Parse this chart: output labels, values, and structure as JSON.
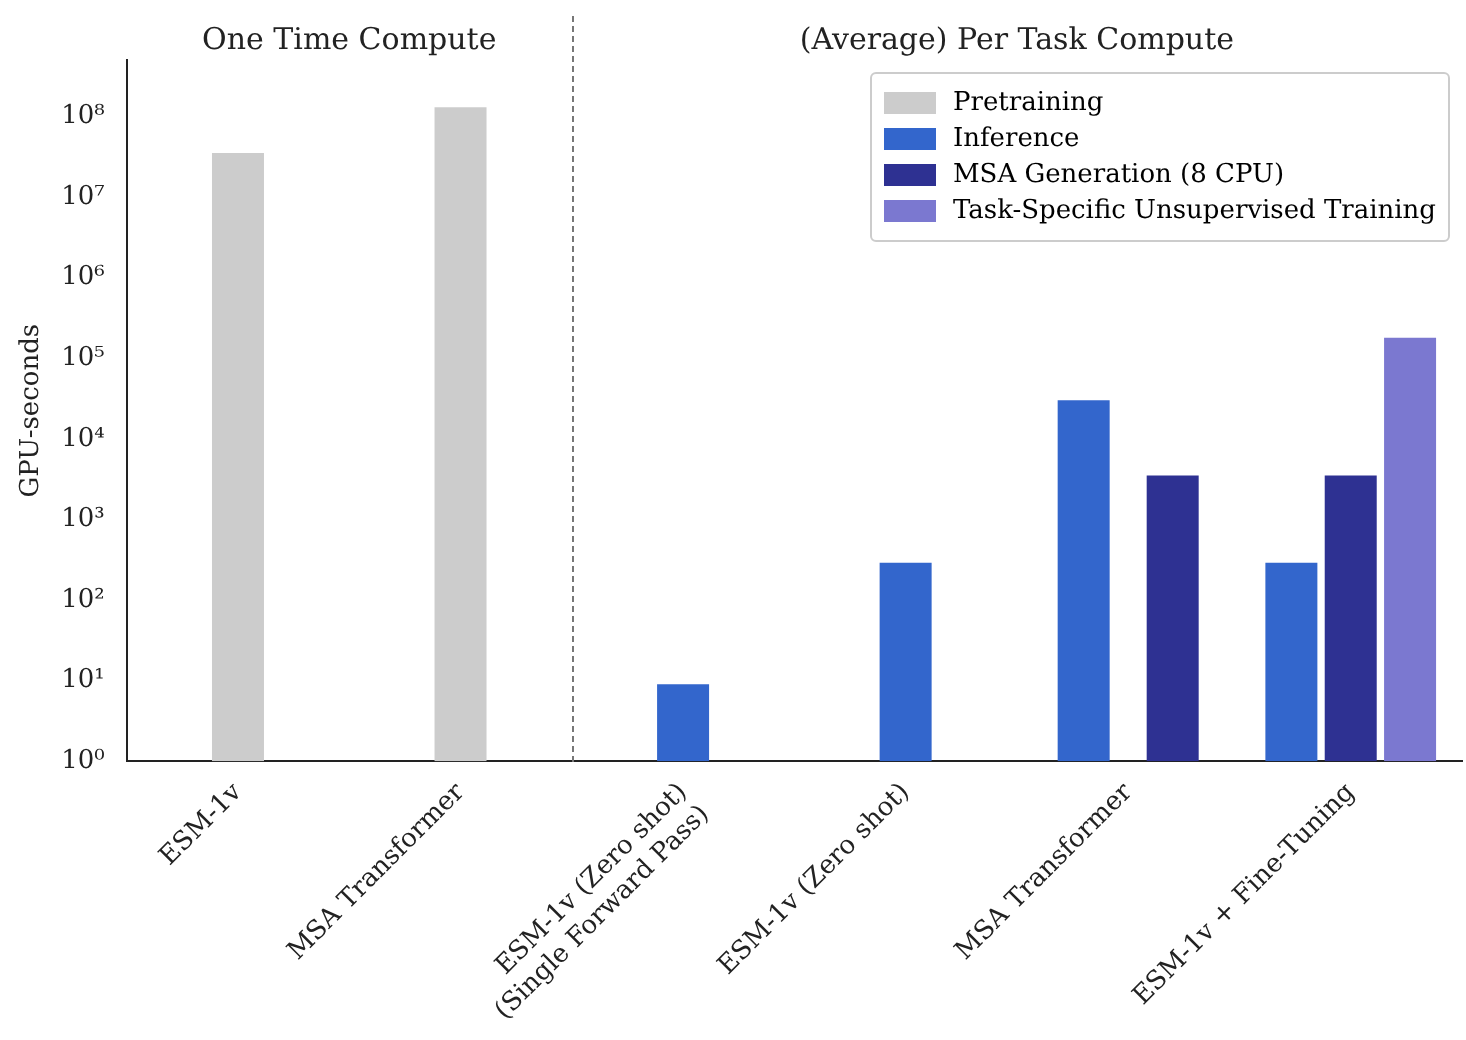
{
  "chart_data": {
    "type": "bar",
    "ylabel": "GPU-seconds",
    "log": "y",
    "categories": [
      "ESM-1v",
      "MSA Transformer",
      "ESM-1v (Zero shot)\n(Single Forward Pass)",
      "ESM-1v (Zero shot)",
      "MSA Transformer",
      "ESM-1v + Fine-Tuning"
    ],
    "series": [
      {
        "name": "Pretraining",
        "color": "#cccccc",
        "values": [
          35000000,
          130000000,
          null,
          null,
          null,
          null
        ]
      },
      {
        "name": "Inference",
        "color": "#3366cc",
        "values": [
          null,
          null,
          9,
          290,
          30000,
          290
        ]
      },
      {
        "name": "MSA Generation (8 CPU)",
        "color": "#2e3192",
        "values": [
          null,
          null,
          null,
          null,
          3500,
          3500
        ]
      },
      {
        "name": "Task-Specific Unsupervised Training",
        "color": "#7b78d0",
        "values": [
          null,
          null,
          null,
          null,
          null,
          180000
        ]
      }
    ],
    "ylim": [
      1,
      500000000
    ],
    "yticks": [
      {
        "value": 1,
        "label": "10⁰"
      },
      {
        "value": 10,
        "label": "10¹"
      },
      {
        "value": 100,
        "label": "10²"
      },
      {
        "value": 1000,
        "label": "10³"
      },
      {
        "value": 10000,
        "label": "10⁴"
      },
      {
        "value": 100000,
        "label": "10⁵"
      },
      {
        "value": 1000000,
        "label": "10⁶"
      },
      {
        "value": 10000000,
        "label": "10⁷"
      },
      {
        "value": 100000000,
        "label": "10⁸"
      }
    ],
    "annotations": [
      "One Time Compute",
      "(Average) Per Task Compute"
    ],
    "legend": "top right",
    "grid": false
  }
}
